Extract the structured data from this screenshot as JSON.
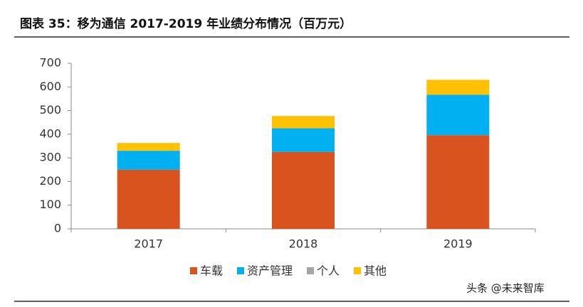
{
  "chart_data": {
    "type": "stacked-bar",
    "title": "图表 35：移为通信 2017-2019 年业绩分布情况（百万元）",
    "categories": [
      "2017",
      "2018",
      "2019"
    ],
    "series": [
      {
        "name": "车载",
        "color": "#d9531e",
        "values": [
          250,
          325,
          396
        ]
      },
      {
        "name": "资产管理",
        "color": "#00b0f0",
        "values": [
          80,
          100,
          171
        ]
      },
      {
        "name": "个人",
        "color": "#a5a5a5",
        "values": [
          0,
          0,
          0
        ]
      },
      {
        "name": "其他",
        "color": "#ffc000",
        "values": [
          33,
          52,
          63
        ]
      }
    ],
    "ylim": [
      0,
      700
    ],
    "yticks": [
      0,
      100,
      200,
      300,
      400,
      500,
      600,
      700
    ],
    "legend": "bottom",
    "watermark": "头条 @未来智库"
  }
}
